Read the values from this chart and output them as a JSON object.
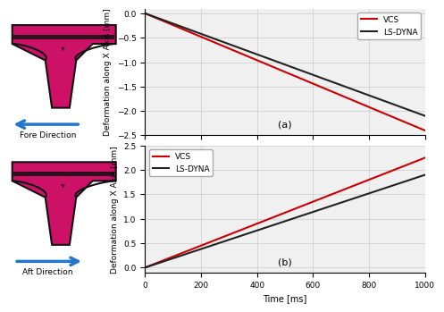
{
  "time": [
    0,
    1000
  ],
  "fore_vcs": [
    0,
    -2.4
  ],
  "fore_lsdyna": [
    0,
    -2.1
  ],
  "aft_vcs": [
    0,
    2.25
  ],
  "aft_lsdyna": [
    0,
    1.9
  ],
  "fore_ylim": [
    -2.5,
    0.1
  ],
  "aft_ylim": [
    -0.1,
    2.5
  ],
  "fore_yticks": [
    0,
    -0.5,
    -1.0,
    -1.5,
    -2.0,
    -2.5
  ],
  "aft_yticks": [
    0.0,
    0.5,
    1.0,
    1.5,
    2.0,
    2.5
  ],
  "xlim": [
    0,
    1000
  ],
  "xticks": [
    0,
    200,
    400,
    600,
    800,
    1000
  ],
  "xlabel": "Time [ms]",
  "ylabel": "Deformation along X Axis [mm]",
  "label_vcs": "VCS",
  "label_lsdyna": "LS-DYNA",
  "color_vcs": "#cc0000",
  "color_lsdyna": "#222222",
  "label_a": "(a)",
  "label_b": "(b)",
  "fore_label": "Fore Direction",
  "aft_label": "Aft Direction",
  "pillar_color": "#cc1166",
  "pillar_dark": "#111111",
  "arrow_color": "#2277cc",
  "bg_color": "#f0f0f0",
  "grid_color": "#cccccc",
  "linewidth": 1.5
}
